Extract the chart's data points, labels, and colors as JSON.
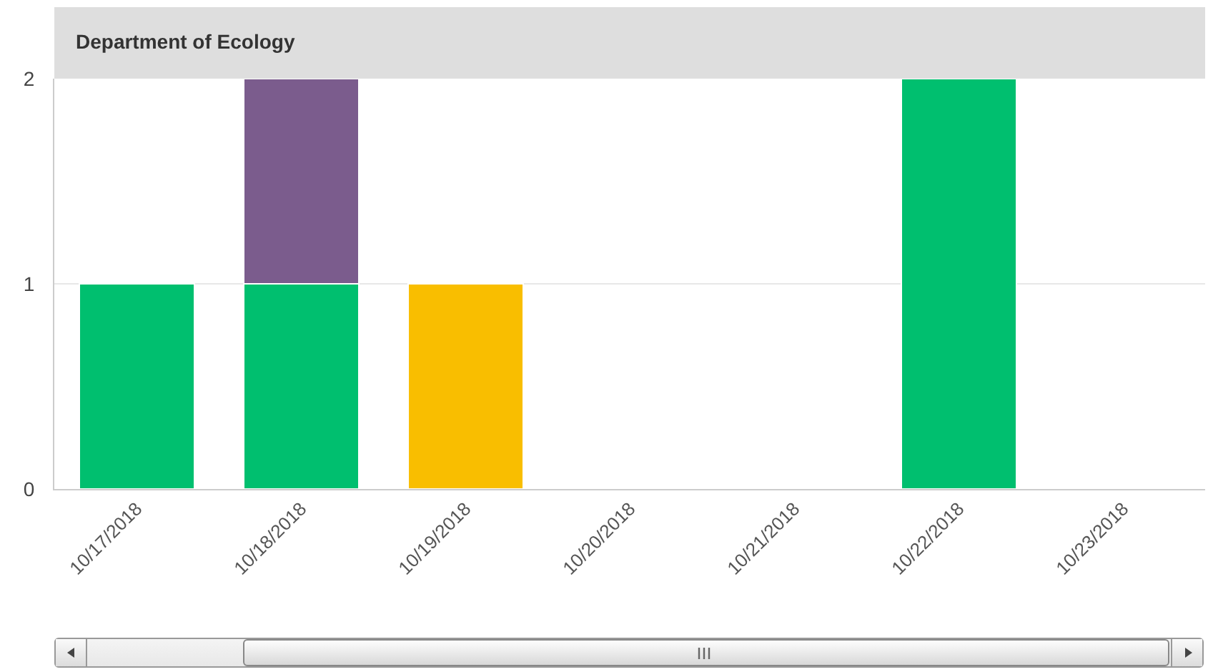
{
  "chart_data": {
    "type": "bar",
    "title": "Department of Ecology",
    "categories": [
      "10/17/2018",
      "10/18/2018",
      "10/19/2018",
      "10/20/2018",
      "10/21/2018",
      "10/22/2018",
      "10/23/2018"
    ],
    "stacked": true,
    "series": [
      {
        "color": "#00bf6f",
        "values": [
          1,
          1,
          null,
          null,
          null,
          2,
          null
        ]
      },
      {
        "color": "#7b5c8d",
        "values": [
          null,
          1,
          null,
          null,
          null,
          null,
          null
        ]
      },
      {
        "color": "#f9be00",
        "values": [
          null,
          null,
          1,
          null,
          null,
          null,
          null
        ]
      }
    ],
    "ylim": [
      0,
      2
    ],
    "yticks": [
      0,
      1,
      2
    ],
    "grid": "y"
  }
}
